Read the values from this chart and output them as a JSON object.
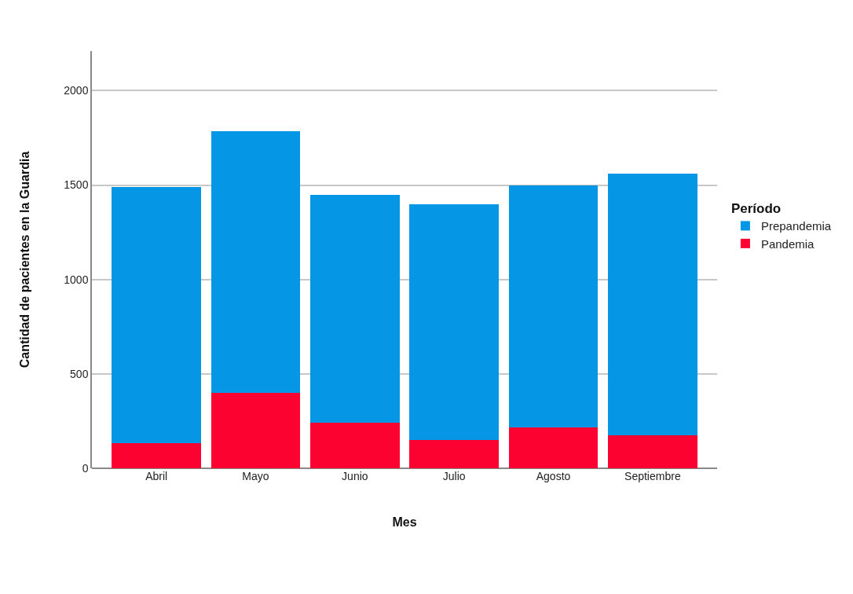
{
  "chart_data": {
    "type": "bar",
    "stacked": true,
    "xlabel": "Mes",
    "ylabel": "Cantidad de pacientes en la Guardia",
    "legend_title": "Período",
    "categories": [
      "Abril",
      "Mayo",
      "Junio",
      "Julio",
      "Agosto",
      "Septiembre"
    ],
    "series": [
      {
        "name": "Pandemia",
        "color": "#fb0230",
        "values": [
          135,
          400,
          240,
          150,
          215,
          175
        ]
      },
      {
        "name": "Prepandemia",
        "color": "#0596e5",
        "values": [
          1355,
          1385,
          1210,
          1250,
          1285,
          1385
        ]
      }
    ],
    "ylim": [
      0,
      2210
    ],
    "yticks": [
      0,
      500,
      1000,
      1500,
      2000
    ],
    "grid": "y",
    "legend": "right"
  }
}
